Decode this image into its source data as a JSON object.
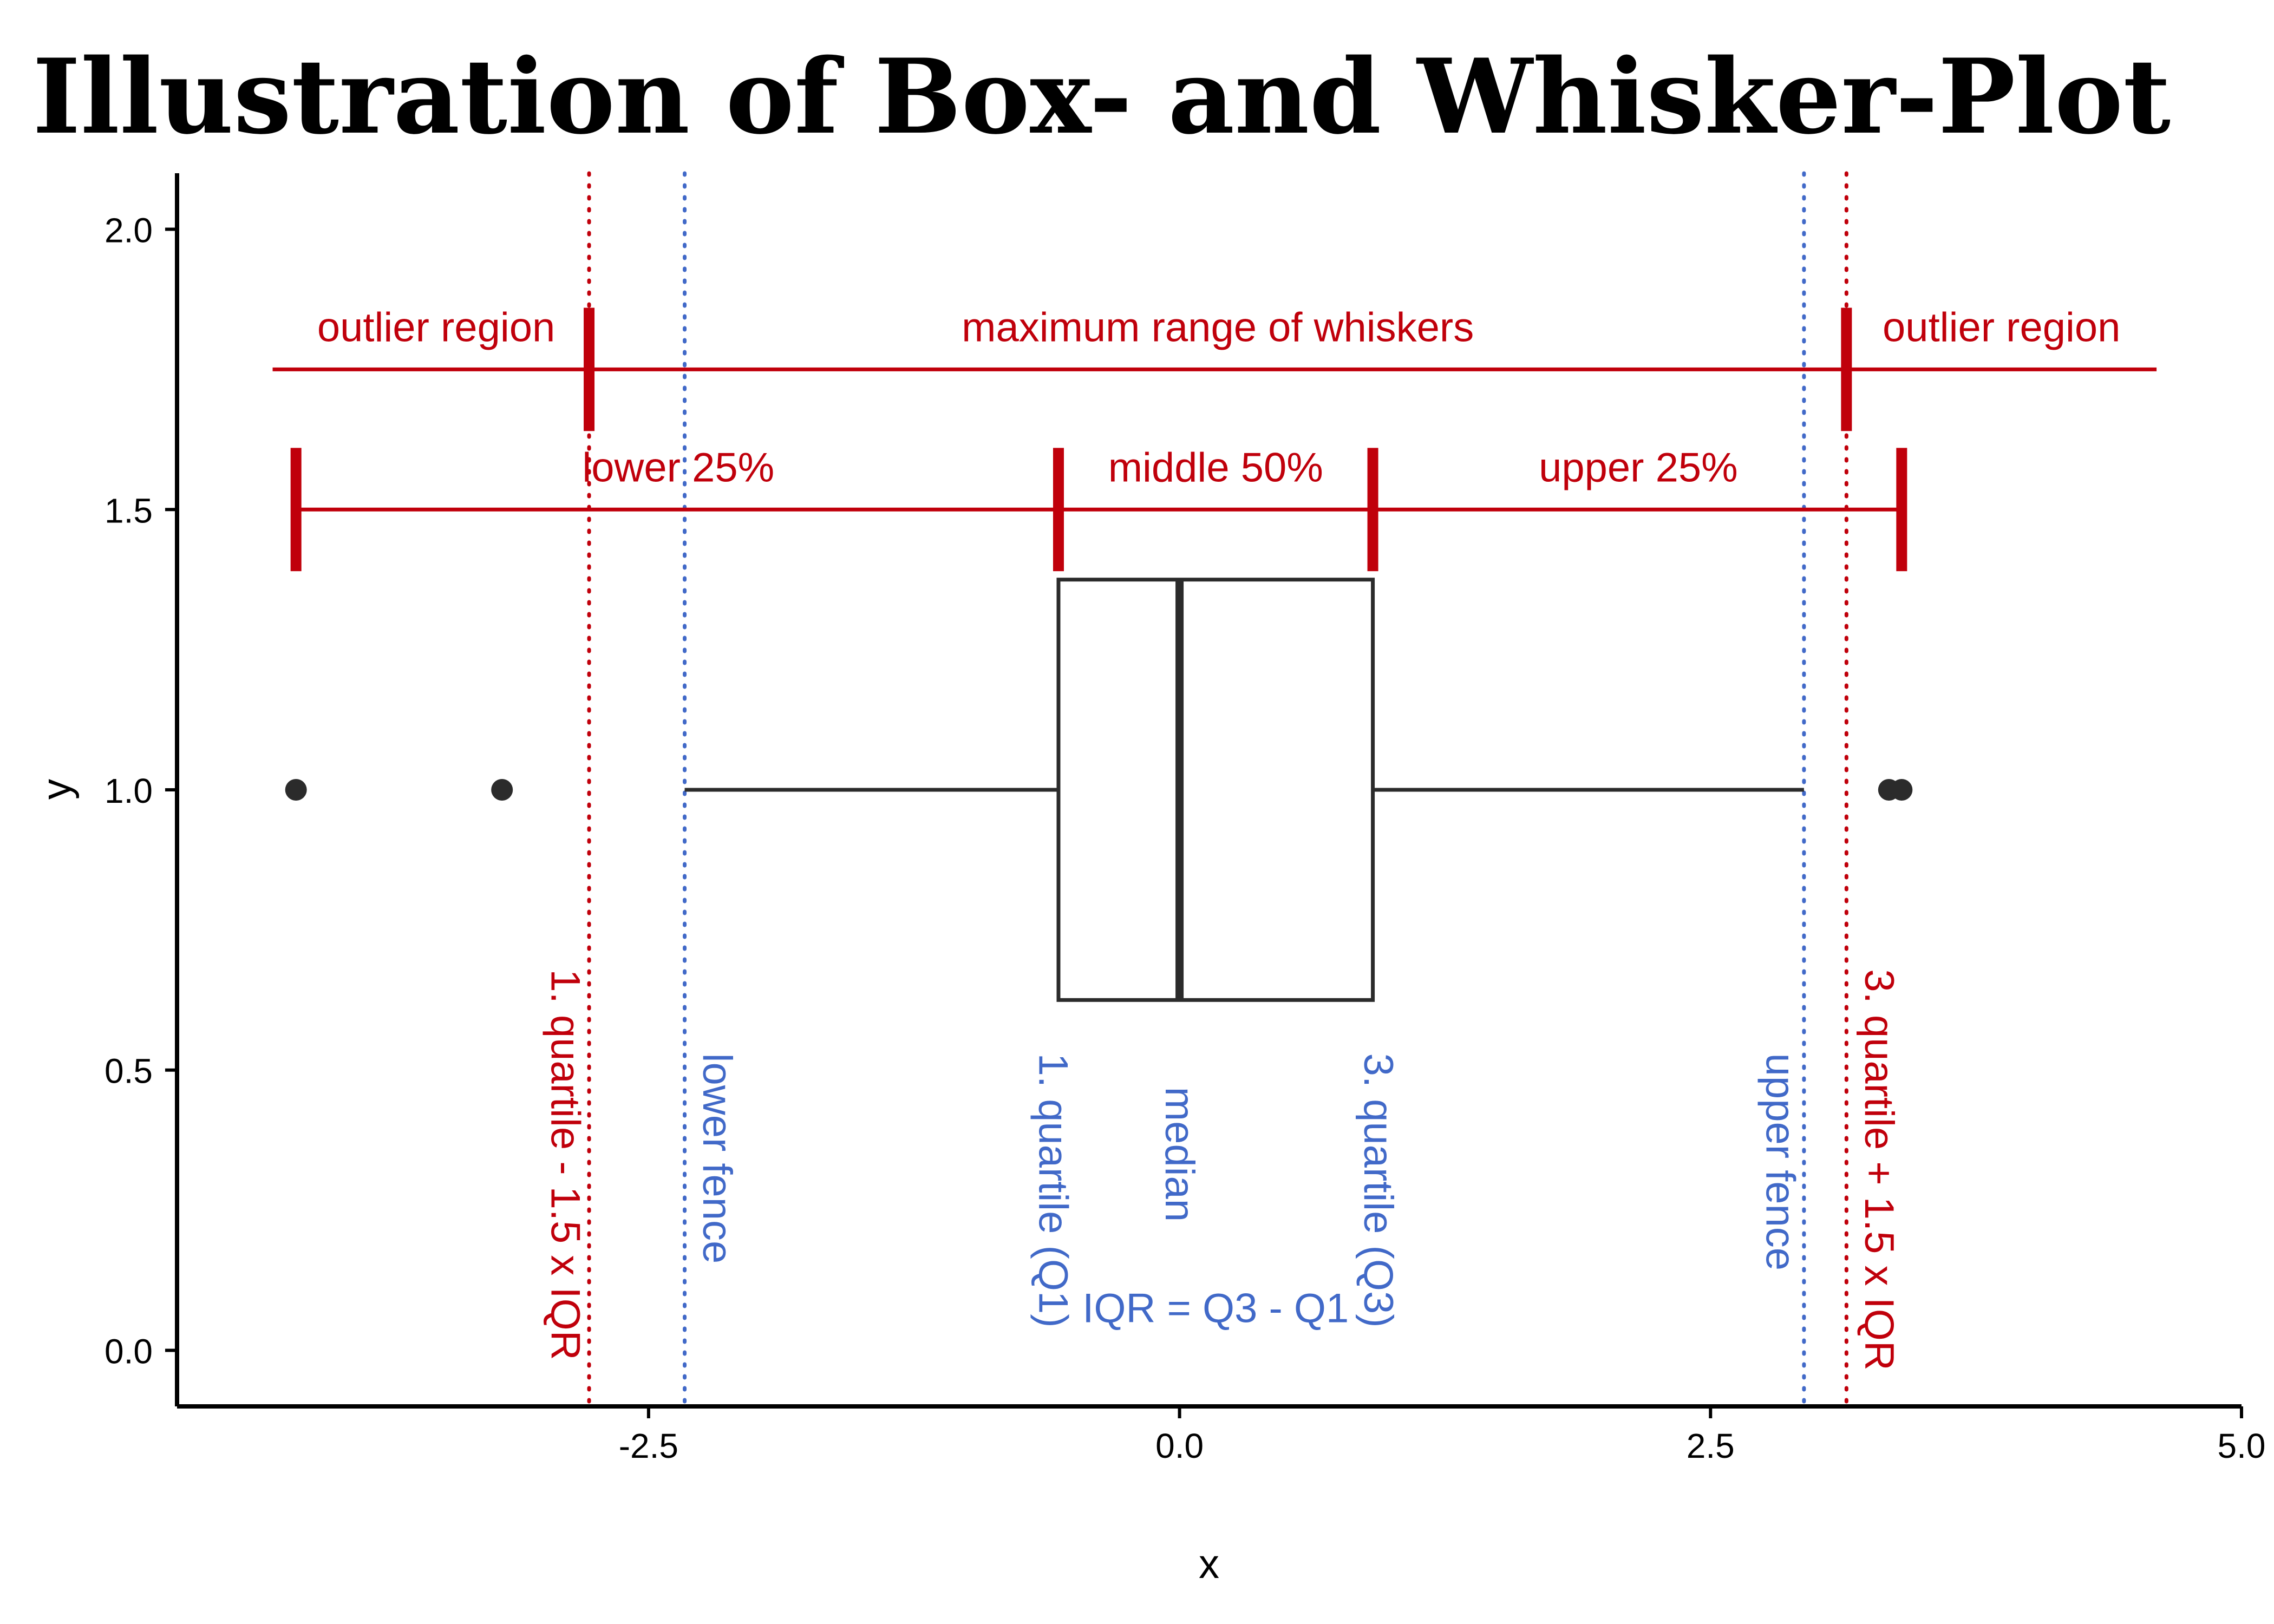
{
  "chart_data": {
    "type": "box",
    "title": "Illustration of Box- and Whisker-Plot",
    "xlabel": "x",
    "ylabel": "y",
    "xlim": [
      -4.72,
      5.0
    ],
    "ylim": [
      -0.1,
      2.1
    ],
    "x_ticks": [
      -2.5,
      0.0,
      2.5,
      5.0
    ],
    "x_tick_labels": [
      "-2.5",
      "0.0",
      "2.5",
      "5.0"
    ],
    "y_ticks": [
      0.0,
      0.5,
      1.0,
      1.5,
      2.0
    ],
    "y_tick_labels": [
      "0.0",
      "0.5",
      "1.0",
      "1.5",
      "2.0"
    ],
    "grid": false,
    "box": {
      "y": 1.0,
      "q1": -0.57,
      "median": 0.0,
      "q3": 0.91,
      "lower_whisker": -2.33,
      "upper_whisker": 2.94,
      "box_bottom": 0.625,
      "box_top": 1.375
    },
    "outliers": [
      {
        "x": -4.16,
        "y": 1.0
      },
      {
        "x": -3.19,
        "y": 1.0
      },
      {
        "x": 3.34,
        "y": 1.0
      },
      {
        "x": 3.4,
        "y": 1.0
      }
    ],
    "reference_lines": [
      {
        "x": -2.78,
        "color": "#c0000b",
        "label": "1. quartile - 1.5 x IQR",
        "label_y": 0.68
      },
      {
        "x": -2.33,
        "color": "#4169c8",
        "label": "lower fence",
        "label_y": 0.53
      },
      {
        "x": 2.94,
        "color": "#4169c8",
        "label": "upper fence",
        "label_y": 0.53
      },
      {
        "x": 3.14,
        "color": "#c0000b",
        "label": "3. quartile + 1.5 x IQR",
        "label_y": 0.68
      }
    ],
    "range_bars": [
      {
        "y": 1.75,
        "x_start": -4.27,
        "x_end": 4.6,
        "ticks": [
          -2.78,
          3.14
        ],
        "tick_half": 0.11
      },
      {
        "y": 1.5,
        "x_start": -4.16,
        "x_end": 3.4,
        "ticks": [
          -4.16,
          -0.57,
          0.91,
          3.4
        ],
        "tick_half": 0.11
      }
    ],
    "annotations": {
      "red": [
        {
          "text": "outlier region",
          "x": -3.5,
          "y": 1.8
        },
        {
          "text": "maximum range of whiskers",
          "x": 0.18,
          "y": 1.8
        },
        {
          "text": "outlier region",
          "x": 3.87,
          "y": 1.8
        },
        {
          "text": "lower 25%",
          "x": -2.36,
          "y": 1.55
        },
        {
          "text": "middle 50%",
          "x": 0.17,
          "y": 1.55
        },
        {
          "text": "upper 25%",
          "x": 2.16,
          "y": 1.55
        }
      ],
      "blue_vertical": [
        {
          "text": "1. quartile (Q1)",
          "x": -0.57,
          "y": 0.53
        },
        {
          "text": "median",
          "x": 0.0,
          "y": 0.47
        },
        {
          "text": "3. quartile (Q3)",
          "x": 0.91,
          "y": 0.53
        }
      ],
      "blue": [
        {
          "text": "IQR = Q3 - Q1",
          "x": 0.17,
          "y": 0.05
        }
      ]
    },
    "colors": {
      "red": "#c0000b",
      "blue": "#4169c8",
      "box": "#2b2b2b",
      "axis": "#000000"
    }
  }
}
